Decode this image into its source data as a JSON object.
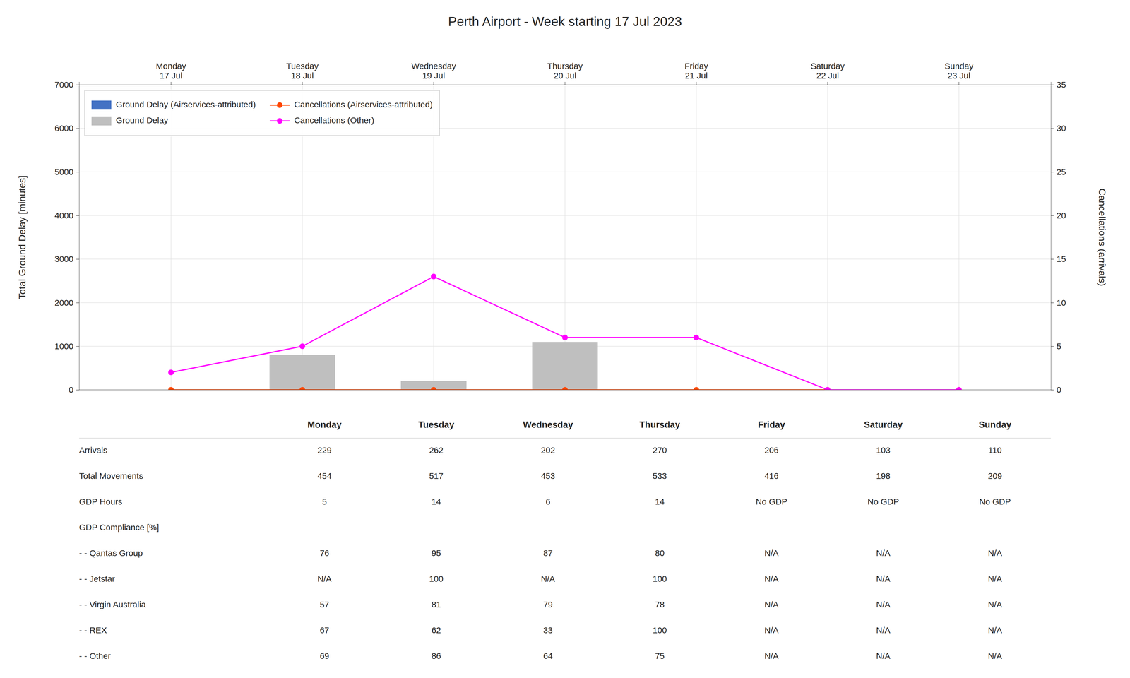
{
  "chart_data": {
    "type": "bar",
    "title": "Perth Airport - Week starting 17 Jul 2023",
    "categories": [
      "Monday\n17 Jul",
      "Tuesday\n18 Jul",
      "Wednesday\n19 Jul",
      "Thursday\n20 Jul",
      "Friday\n21 Jul",
      "Saturday\n22 Jul",
      "Sunday\n23 Jul"
    ],
    "y_label": "Total Ground Delay [minutes]",
    "y2_label": "Cancellations (arrivals)",
    "ylim": [
      0,
      7000
    ],
    "yticks": [
      0,
      1000,
      2000,
      3000,
      4000,
      5000,
      6000,
      7000
    ],
    "y2lim": [
      0,
      35
    ],
    "y2ticks": [
      0,
      5,
      10,
      15,
      20,
      25,
      30,
      35
    ],
    "grid": true,
    "legend": "upper left",
    "series": [
      {
        "name": "Ground Delay (Airservices-attributed)",
        "type": "bar",
        "color": "#4472C4",
        "values": [
          0,
          0,
          0,
          0,
          0,
          0,
          0
        ]
      },
      {
        "name": "Ground Delay",
        "type": "bar",
        "color": "#BFBFBF",
        "values": [
          0,
          800,
          200,
          1100,
          0,
          0,
          0
        ]
      },
      {
        "name": "Cancellations (Airservices-attributed)",
        "type": "line",
        "axis": "y2",
        "color": "#FF4500",
        "marker": "circle",
        "values": [
          0,
          0,
          0,
          0,
          0,
          0,
          0
        ]
      },
      {
        "name": "Cancellations (Other)",
        "type": "line",
        "axis": "y2",
        "color": "#FF00FF",
        "marker": "circle",
        "values": [
          2,
          5,
          13,
          6,
          6,
          0,
          0
        ]
      }
    ],
    "table": {
      "headers": [
        "Monday",
        "Tuesday",
        "Wednesday",
        "Thursday",
        "Friday",
        "Saturday",
        "Sunday"
      ],
      "rows": [
        {
          "label": "Arrivals",
          "values": [
            229,
            262,
            202,
            270,
            206,
            103,
            110
          ]
        },
        {
          "label": "Total Movements",
          "values": [
            454,
            517,
            453,
            533,
            416,
            198,
            209
          ]
        },
        {
          "label": "GDP Hours",
          "values": [
            5,
            14,
            6,
            14,
            "No GDP",
            "No GDP",
            "No GDP"
          ]
        },
        {
          "label": "GDP Compliance [%]",
          "values": [
            null,
            null,
            null,
            null,
            null,
            null,
            null
          ]
        },
        {
          "label": "- - Qantas Group",
          "values": [
            76,
            95,
            87,
            80,
            "N/A",
            "N/A",
            "N/A"
          ]
        },
        {
          "label": "- - Jetstar",
          "values": [
            "N/A",
            100,
            "N/A",
            100,
            "N/A",
            "N/A",
            "N/A"
          ]
        },
        {
          "label": "- - Virgin Australia",
          "values": [
            57,
            81,
            79,
            78,
            "N/A",
            "N/A",
            "N/A"
          ]
        },
        {
          "label": "- - REX",
          "values": [
            67,
            62,
            33,
            100,
            "N/A",
            "N/A",
            "N/A"
          ]
        },
        {
          "label": "- - Other",
          "values": [
            69,
            86,
            64,
            75,
            "N/A",
            "N/A",
            "N/A"
          ]
        }
      ]
    }
  }
}
